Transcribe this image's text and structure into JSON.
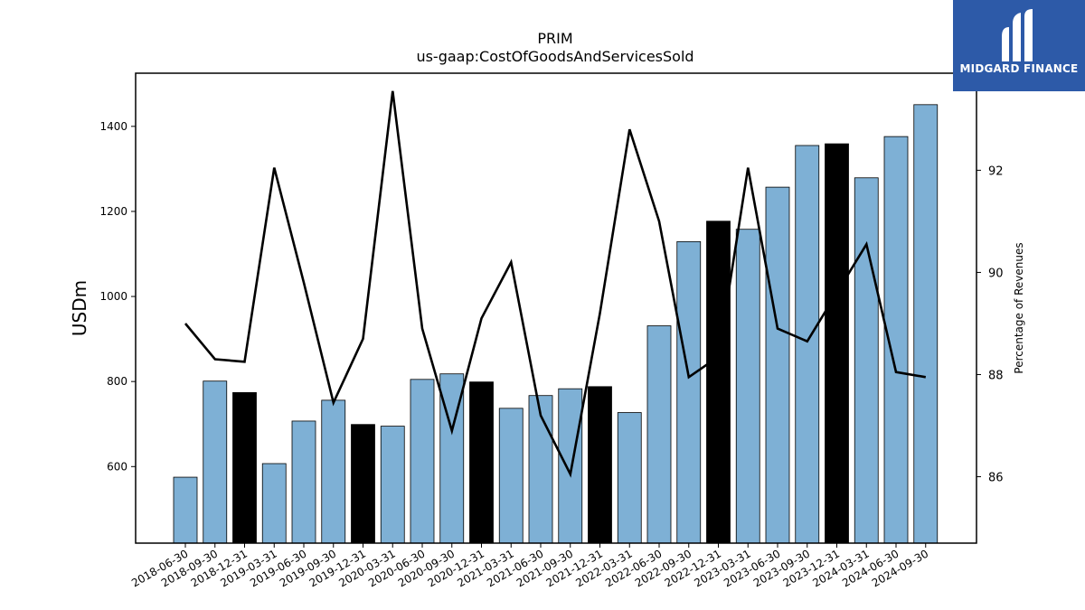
{
  "chart_data": {
    "type": "bar+line",
    "title": "PRIM",
    "subtitle": "us-gaap:CostOfGoodsAndServicesSold",
    "ylabel": "USDm",
    "ylabel_right": "Percentage of Revenues",
    "ylim": [
      420,
      1525
    ],
    "ylim_right": [
      84.7,
      93.9
    ],
    "y_ticks": [
      600,
      800,
      1000,
      1200,
      1400
    ],
    "y_ticks_right": [
      86,
      88,
      90,
      92
    ],
    "categories": [
      "2018-06-30",
      "2018-09-30",
      "2018-12-31",
      "2019-03-31",
      "2019-06-30",
      "2019-09-30",
      "2019-12-31",
      "2020-03-31",
      "2020-06-30",
      "2020-09-30",
      "2020-12-31",
      "2021-03-31",
      "2021-06-30",
      "2021-09-30",
      "2021-12-31",
      "2022-03-31",
      "2022-06-30",
      "2022-09-30",
      "2022-12-31",
      "2023-03-31",
      "2023-06-30",
      "2023-09-30",
      "2023-12-31",
      "2024-03-31",
      "2024-06-30",
      "2024-09-30"
    ],
    "series": [
      {
        "kind": "bar",
        "values": [
          575,
          801,
          774,
          607,
          707,
          756,
          699,
          695,
          805,
          818,
          799,
          737,
          767,
          783,
          788,
          727,
          931,
          1129,
          1177,
          1158,
          1257,
          1355,
          1359,
          1279,
          1376,
          1451
        ],
        "annual_flags": [
          false,
          false,
          true,
          false,
          false,
          false,
          true,
          false,
          false,
          false,
          true,
          false,
          false,
          false,
          true,
          false,
          false,
          false,
          true,
          false,
          false,
          false,
          true,
          false,
          false,
          false
        ]
      },
      {
        "kind": "line",
        "axis": "right",
        "values": [
          89.0,
          88.3,
          88.25,
          92.05,
          89.8,
          87.45,
          88.7,
          93.55,
          88.9,
          86.9,
          89.1,
          90.2,
          87.2,
          86.05,
          89.2,
          92.8,
          91.0,
          87.95,
          88.35,
          92.05,
          88.9,
          88.65,
          89.6,
          90.55,
          88.05,
          87.95
        ]
      }
    ],
    "colors": {
      "quarter_bar": "#7eb0d5",
      "annual_bar": "#000000",
      "line": "#000000"
    },
    "grid": false,
    "legend": "none"
  },
  "logo": {
    "text": "MIDGARD FINANCE",
    "color": "#2d5aa8"
  }
}
